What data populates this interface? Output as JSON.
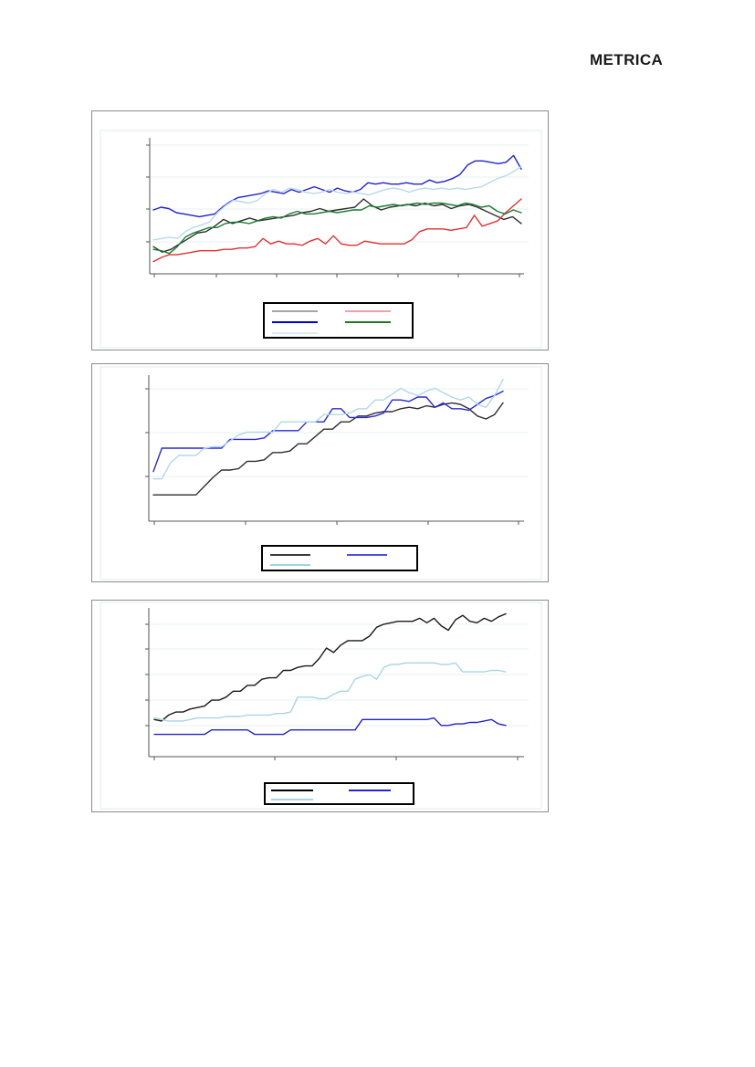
{
  "page": {
    "logo_text": "METRICA",
    "background": "#ffffff",
    "panel_border_color": "#8c8c8c",
    "inner_frame_color": "#e4ebee",
    "gridline_color": "#e7f1f2",
    "axis_color": "#555555",
    "legend_border_color": "#000000",
    "notes": "three stacked chart frames; axes and legends carry no visible text"
  },
  "chart_data": [
    {
      "type": "line",
      "title": "",
      "xlabel": "",
      "ylabel": "",
      "axis_labels_visible": false,
      "ylim": [
        0,
        100
      ],
      "y_unit": "relative-scale (axis unlabeled)",
      "x_tick_count": 7,
      "y_gridline_count": 4,
      "legend": {
        "position": "bottom",
        "labels_visible": false,
        "rows": 3,
        "cols": 2
      },
      "series": [
        {
          "name": "series-black",
          "color": "#2f2f2f",
          "legend_color": "#a6a6a6",
          "values": [
            20,
            16,
            18,
            22,
            26,
            30,
            31,
            35,
            40,
            37,
            39,
            41,
            39,
            40,
            41,
            42,
            43,
            45,
            46,
            48,
            46,
            47,
            48,
            49,
            55,
            50,
            47,
            49,
            50,
            51,
            50,
            52,
            50,
            51,
            48,
            50,
            51,
            49,
            46,
            43,
            40,
            42,
            37
          ]
        },
        {
          "name": "series-red",
          "color": "#e03131",
          "legend_color": "#f2a2a6",
          "values": [
            9,
            12,
            14,
            14,
            15,
            16,
            17,
            17,
            17,
            18,
            18,
            19,
            19,
            20,
            26,
            22,
            24,
            22,
            22,
            21,
            24,
            26,
            22,
            28,
            22,
            21,
            21,
            24,
            23,
            22,
            22,
            22,
            22,
            25,
            31,
            33,
            33,
            33,
            32,
            33,
            34,
            43,
            35,
            37,
            39,
            45,
            50,
            55
          ]
        },
        {
          "name": "series-blue",
          "color": "#2222cc",
          "legend_color": "#0000d0",
          "values": [
            47,
            49,
            48,
            45,
            44,
            43,
            42,
            43,
            44,
            49,
            53,
            56,
            57,
            58,
            59,
            61,
            60,
            59,
            62,
            60,
            62,
            64,
            62,
            60,
            63,
            61,
            60,
            62,
            67,
            66,
            67,
            66,
            66,
            67,
            66,
            66,
            69,
            67,
            68,
            70,
            73,
            80,
            83,
            83,
            82,
            81,
            82,
            87,
            77
          ]
        },
        {
          "name": "series-green",
          "color": "#1e7b34",
          "legend_color": "#1a7a1a",
          "values": [
            18,
            17,
            15,
            20,
            27,
            30,
            32,
            34,
            34,
            37,
            38,
            38,
            37,
            39,
            41,
            42,
            41,
            44,
            46,
            44,
            44,
            45,
            46,
            45,
            46,
            47,
            47,
            50,
            49,
            50,
            51,
            50,
            51,
            52,
            51,
            52,
            52,
            51,
            50,
            52,
            51,
            49,
            50,
            46,
            44,
            47,
            45
          ]
        },
        {
          "name": "series-lightblue",
          "color": "#b9d9ea",
          "legend_color": "#d8ecf4",
          "values": [
            25,
            26,
            27,
            26,
            31,
            34,
            36,
            38,
            45,
            50,
            54,
            53,
            52,
            54,
            59,
            62,
            60,
            63,
            62,
            60,
            59,
            60,
            62,
            60,
            59,
            60,
            59,
            58,
            60,
            62,
            63,
            62,
            60,
            62,
            63,
            62,
            63,
            62,
            63,
            62,
            63,
            64,
            67,
            70,
            72,
            75,
            79
          ]
        }
      ]
    },
    {
      "type": "line",
      "title": "",
      "xlabel": "",
      "ylabel": "",
      "axis_labels_visible": false,
      "ylim": [
        0,
        100
      ],
      "y_unit": "relative-scale (axis unlabeled)",
      "x_tick_count": 5,
      "y_gridline_count": 3,
      "legend": {
        "position": "bottom",
        "labels_visible": false,
        "rows": 2,
        "cols": 2
      },
      "series": [
        {
          "name": "series-black",
          "color": "#2f2f2f",
          "legend_color": "#3a3a3a",
          "values": [
            18,
            18,
            18,
            18,
            18,
            18,
            24,
            30,
            35,
            35,
            36,
            41,
            41,
            42,
            47,
            47,
            48,
            53,
            53,
            58,
            63,
            63,
            68,
            68,
            72,
            72,
            74,
            75,
            75,
            77,
            78,
            77,
            79,
            78,
            80,
            81,
            80,
            77,
            72,
            70,
            73,
            81
          ]
        },
        {
          "name": "series-blue",
          "color": "#2a2ad4",
          "legend_color": "#5050e0",
          "values": [
            34,
            50,
            50,
            50,
            50,
            50,
            50,
            50,
            50,
            56,
            56,
            56,
            56,
            57,
            62,
            62,
            62,
            62,
            68,
            68,
            68,
            77,
            77,
            71,
            71,
            71,
            72,
            74,
            83,
            83,
            82,
            85,
            85,
            78,
            81,
            77,
            77,
            76,
            80,
            84,
            86,
            89
          ]
        },
        {
          "name": "series-lightblue",
          "color": "#b0d8e8",
          "legend_color": "#9fd4dc",
          "values": [
            29,
            29,
            40,
            45,
            45,
            45,
            50,
            51,
            51,
            55,
            59,
            61,
            61,
            61,
            61,
            68,
            68,
            68,
            68,
            68,
            73,
            73,
            73,
            74,
            77,
            77,
            83,
            83,
            87,
            91,
            88,
            86,
            89,
            91,
            88,
            85,
            83,
            85,
            80,
            78,
            86,
            97
          ]
        }
      ]
    },
    {
      "type": "line",
      "title": "",
      "xlabel": "",
      "ylabel": "",
      "axis_labels_visible": false,
      "ylim": [
        0,
        100
      ],
      "y_unit": "relative-scale (axis unlabeled)",
      "x_tick_count": 4,
      "y_gridline_count": 5,
      "legend": {
        "position": "bottom",
        "labels_visible": false,
        "rows": 2,
        "cols": 2
      },
      "series": [
        {
          "name": "series-black",
          "color": "#1a1a1a",
          "legend_color": "#000000",
          "values": [
            25,
            24,
            28,
            30,
            30,
            32,
            33,
            34,
            38,
            38,
            40,
            44,
            44,
            48,
            48,
            52,
            53,
            53,
            58,
            58,
            60,
            61,
            61,
            66,
            73,
            70,
            75,
            78,
            78,
            78,
            81,
            87,
            89,
            90,
            91,
            91,
            91,
            93,
            90,
            93,
            88,
            85,
            92,
            95,
            91,
            90,
            93,
            91,
            94,
            96
          ]
        },
        {
          "name": "series-blue",
          "color": "#2222cc",
          "legend_color": "#2222dd",
          "values": [
            15,
            15,
            15,
            15,
            15,
            15,
            15,
            15,
            18,
            18,
            18,
            18,
            18,
            18,
            15,
            15,
            15,
            15,
            15,
            18,
            18,
            18,
            18,
            18,
            18,
            18,
            18,
            18,
            18,
            25,
            25,
            25,
            25,
            25,
            25,
            25,
            25,
            25,
            25,
            26,
            21,
            21,
            22,
            22,
            23,
            23,
            24,
            25,
            22,
            21
          ]
        },
        {
          "name": "series-lightblue",
          "color": "#a8d4e4",
          "legend_color": "#a8d4e4",
          "values": [
            26,
            25,
            24,
            24,
            24,
            25,
            26,
            26,
            26,
            26,
            27,
            27,
            27,
            28,
            28,
            28,
            28,
            29,
            29,
            30,
            40,
            40,
            40,
            39,
            39,
            42,
            44,
            44,
            52,
            54,
            55,
            52,
            60,
            62,
            62,
            63,
            63,
            63,
            63,
            63,
            62,
            62,
            63,
            57,
            57,
            57,
            57,
            58,
            58,
            57
          ]
        }
      ]
    }
  ]
}
